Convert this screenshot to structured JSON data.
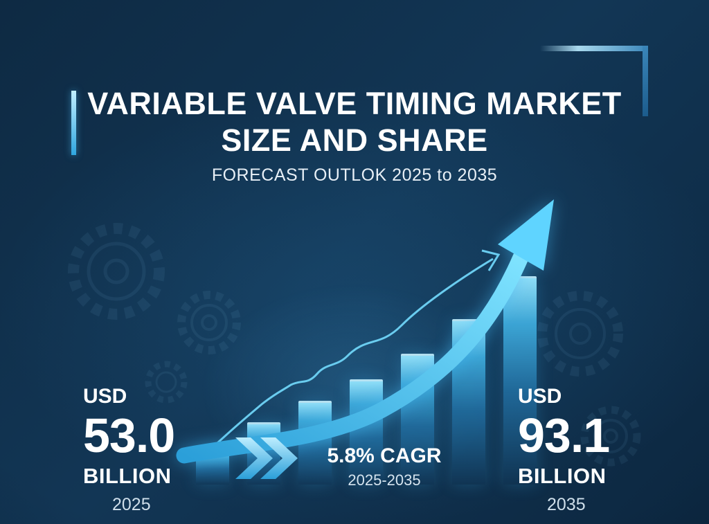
{
  "theme": {
    "background": "#113252",
    "accent": "#3cc9f5",
    "text": "#ffffff",
    "muted_text": "#cfdfeb"
  },
  "header": {
    "title_line1": "VARIABLE VALVE TIMING MARKET",
    "title_line2": "SIZE AND SHARE",
    "subtitle": "FORECAST OUTLOK 2025 to 2035"
  },
  "stats": {
    "start": {
      "currency": "USD",
      "value": "53.0",
      "unit": "BILLION",
      "year": "2025"
    },
    "end": {
      "currency": "USD",
      "value": "93.1",
      "unit": "BILLION",
      "year": "2035"
    },
    "cagr": {
      "rate": "5.8% CAGR",
      "period": "2025-2035"
    }
  },
  "icons": {
    "chevrons": "double-chevron-right-icon",
    "thin_arrow": "thin-trend-arrow-icon",
    "growth_arrow": "growth-swoosh-arrow-icon",
    "gears": "gear-decoration-icon"
  },
  "chart_data": {
    "type": "bar",
    "categories": [
      "",
      "",
      "",
      "",
      "",
      "",
      ""
    ],
    "values": [
      53.0,
      59.0,
      64.0,
      69.0,
      75.0,
      83.0,
      93.1
    ],
    "title": "Variable Valve Timing Market Size",
    "xlabel": "",
    "ylabel": "USD Billion",
    "ylim": [
      0,
      100
    ],
    "grid": false,
    "legend": false,
    "annotations": [
      "USD 53.0 BILLION (2025)",
      "USD 93.1 BILLION (2035)",
      "5.8% CAGR 2025-2035"
    ]
  }
}
